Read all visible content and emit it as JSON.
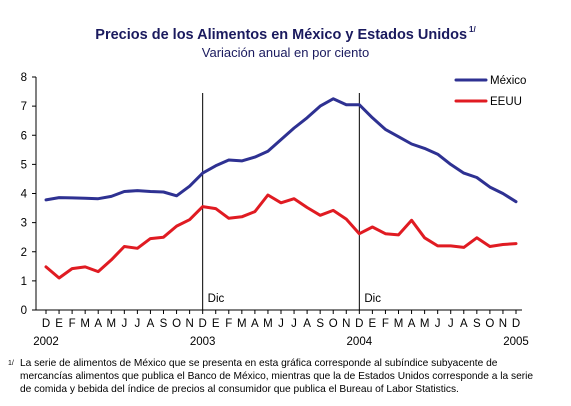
{
  "header": {
    "title": "Precios de los Alimentos en México y Estados Unidos",
    "title_note": "1/",
    "subtitle": "Variación anual en por ciento"
  },
  "footnote": {
    "mark": "1/",
    "text": "La serie de alimentos de México que se presenta en esta gráfica corresponde al subíndice subyacente de mercancías alimentos que publica el Banco de México, mientras que la de Estados Unidos corresponde a la serie de comida y bebida del índice de precios al consumidor que publica el Bureau of Labor Statistics."
  },
  "chart_data": {
    "type": "line",
    "ylim": [
      0,
      8
    ],
    "yticks": [
      0,
      1,
      2,
      3,
      4,
      5,
      6,
      7,
      8
    ],
    "grid": false,
    "legend_position": "top-right",
    "categories": [
      "D",
      "E",
      "F",
      "M",
      "A",
      "M",
      "J",
      "J",
      "A",
      "S",
      "O",
      "N",
      "D",
      "E",
      "F",
      "M",
      "A",
      "M",
      "J",
      "J",
      "A",
      "S",
      "O",
      "N",
      "D",
      "E",
      "F",
      "M",
      "A",
      "M",
      "J",
      "J",
      "A",
      "S",
      "O",
      "N",
      "D"
    ],
    "year_labels": [
      {
        "label": "2002",
        "index": 0
      },
      {
        "label": "2003",
        "index": 12
      },
      {
        "label": "2004",
        "index": 24
      },
      {
        "label": "2005",
        "index": 36
      }
    ],
    "annotations": [
      {
        "label": "Dic",
        "index": 12
      },
      {
        "label": "Dic",
        "index": 24
      }
    ],
    "series": [
      {
        "name": "México",
        "color": "#2e3192",
        "values": [
          3.78,
          3.86,
          3.85,
          3.84,
          3.82,
          3.9,
          4.07,
          4.1,
          4.07,
          4.05,
          3.92,
          4.25,
          4.7,
          4.95,
          5.15,
          5.12,
          5.25,
          5.45,
          5.85,
          6.25,
          6.6,
          7.0,
          7.25,
          7.05,
          7.05,
          6.6,
          6.2,
          5.95,
          5.7,
          5.55,
          5.35,
          5.0,
          4.7,
          4.55,
          4.22,
          4.0,
          3.72
        ]
      },
      {
        "name": "EEUU",
        "color": "#e01b22",
        "values": [
          1.48,
          1.1,
          1.42,
          1.48,
          1.32,
          1.72,
          2.18,
          2.12,
          2.45,
          2.5,
          2.88,
          3.1,
          3.55,
          3.48,
          3.15,
          3.2,
          3.38,
          3.95,
          3.68,
          3.82,
          3.52,
          3.25,
          3.42,
          3.12,
          2.62,
          2.85,
          2.62,
          2.58,
          3.08,
          2.48,
          2.2,
          2.2,
          2.15,
          2.48,
          2.18,
          2.25,
          2.28
        ]
      }
    ]
  }
}
